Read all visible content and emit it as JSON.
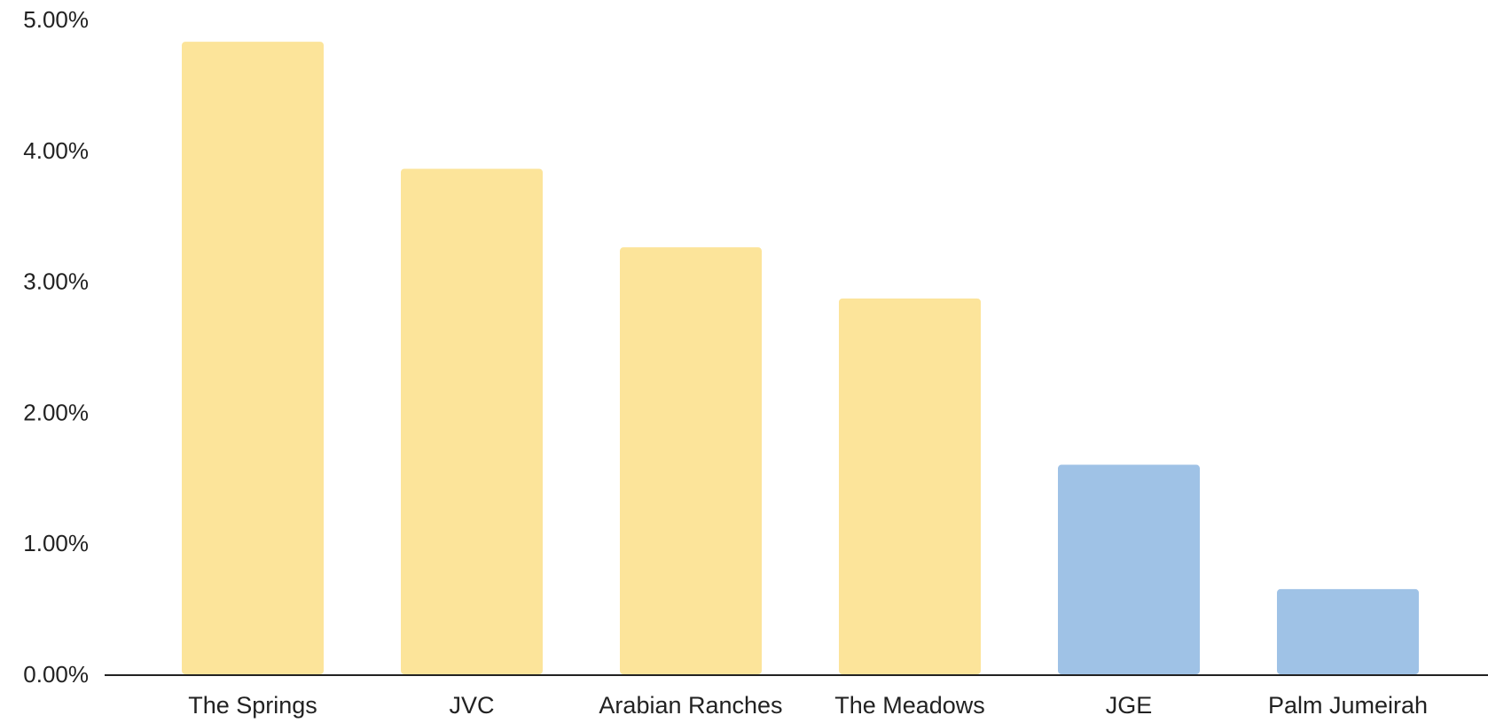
{
  "chart_data": {
    "type": "bar",
    "title": "",
    "xlabel": "",
    "ylabel": "",
    "categories": [
      "The Springs",
      "JVC",
      "Arabian Ranches",
      "The Meadows",
      "JGE",
      "Palm Jumeirah"
    ],
    "values": [
      4.83,
      3.86,
      3.26,
      2.87,
      1.6,
      0.65
    ],
    "bar_colors": [
      "#fce49a",
      "#fce49a",
      "#fce49a",
      "#fce49a",
      "#9fc2e6",
      "#9fc2e6"
    ],
    "ylim": [
      0,
      5
    ],
    "yticks": [
      0,
      1,
      2,
      3,
      4,
      5
    ],
    "ytick_labels": [
      "0.00%",
      "1.00%",
      "2.00%",
      "3.00%",
      "4.00%",
      "5.00%"
    ],
    "grid": false,
    "legend": "none"
  }
}
